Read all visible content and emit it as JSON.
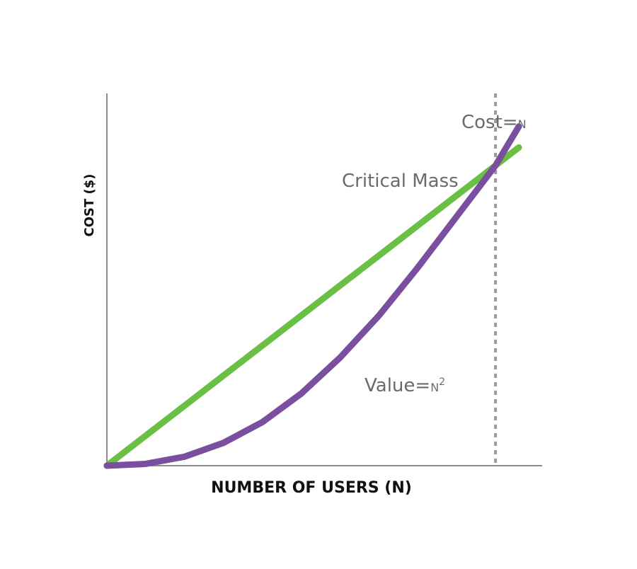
{
  "chart_data": {
    "type": "line",
    "xlabel": "NUMBER OF USERS (N)",
    "ylabel": "COST ($)",
    "x": [
      0,
      0.1,
      0.2,
      0.3,
      0.4,
      0.5,
      0.6,
      0.7,
      0.8,
      0.9,
      1.0,
      1.06
    ],
    "series": [
      {
        "name": "Cost",
        "label_prefix": "Cost=",
        "label_symbol": "N",
        "color": "#6abf45",
        "values": [
          0,
          0.1,
          0.2,
          0.3,
          0.4,
          0.5,
          0.6,
          0.7,
          0.8,
          0.9,
          1.0,
          1.06
        ]
      },
      {
        "name": "Value",
        "label_prefix": "Value=",
        "label_symbol": "N",
        "label_exponent": "2",
        "color": "#7b4fa0",
        "values": [
          0,
          0.006,
          0.03,
          0.076,
          0.145,
          0.24,
          0.36,
          0.5,
          0.66,
          0.83,
          1.0,
          1.13
        ]
      }
    ],
    "annotations": [
      {
        "text": "Critical Mass",
        "x": 1.0,
        "y": 1.0
      }
    ],
    "reference_line": {
      "x": 1.0,
      "style": "dashed",
      "color": "#9a9a9a"
    },
    "grid": false,
    "xlim": [
      0,
      1.12
    ],
    "ylim": [
      0,
      1.24
    ]
  }
}
